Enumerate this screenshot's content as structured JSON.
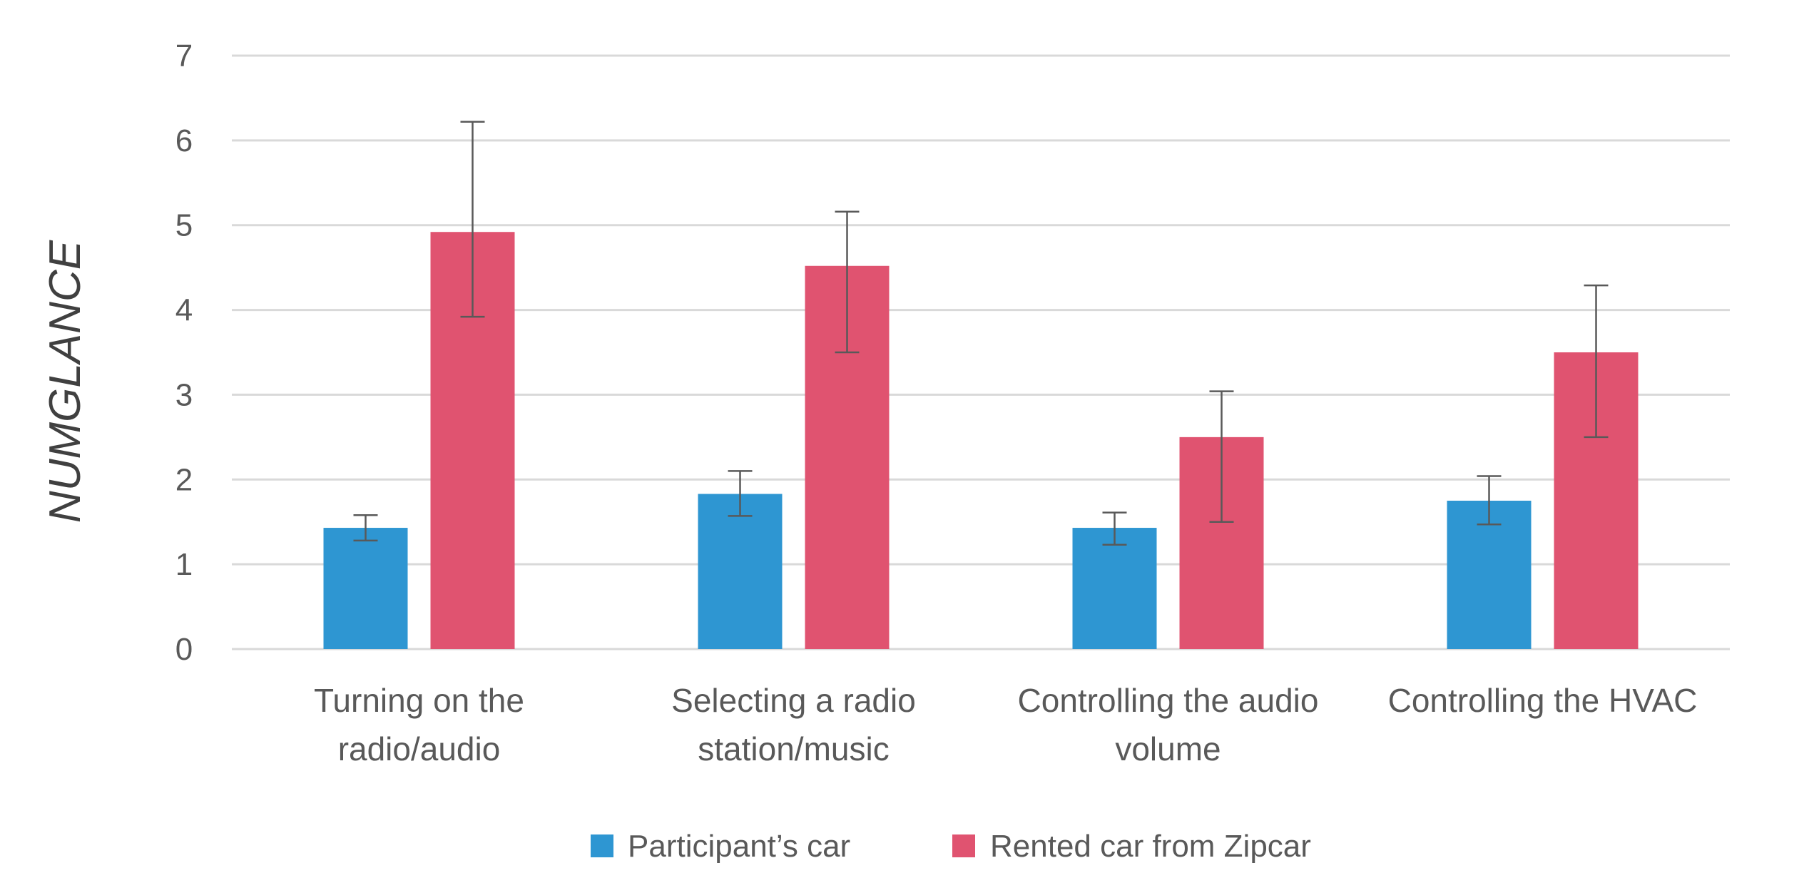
{
  "chart_data": {
    "type": "bar",
    "ylabel": "NUMGLANCE",
    "xlabel": "",
    "ylim": [
      0,
      7
    ],
    "yticks": [
      "0",
      "1",
      "2",
      "3",
      "4",
      "5",
      "6",
      "7"
    ],
    "grid": true,
    "legend_position": "bottom",
    "categories": [
      [
        "Turning on the",
        "radio/audio"
      ],
      [
        "Selecting a radio",
        "station/music"
      ],
      [
        "Controlling the audio",
        "volume"
      ],
      [
        "Controlling the HVAC"
      ]
    ],
    "series": [
      {
        "name": "Participant’s car",
        "color": "#2E96D2",
        "values": [
          1.43,
          1.83,
          1.43,
          1.75
        ],
        "error_low": [
          1.28,
          1.57,
          1.23,
          1.47
        ],
        "error_high": [
          1.58,
          2.1,
          1.61,
          2.04
        ]
      },
      {
        "name": "Rented car from Zipcar",
        "color": "#E05370",
        "values": [
          4.92,
          4.52,
          2.5,
          3.5
        ],
        "error_low": [
          3.92,
          3.5,
          1.5,
          2.5
        ],
        "error_high": [
          6.22,
          5.16,
          3.04,
          4.29
        ]
      }
    ],
    "gridline_color": "#D9D9D9",
    "errorbar_color": "#595959"
  }
}
